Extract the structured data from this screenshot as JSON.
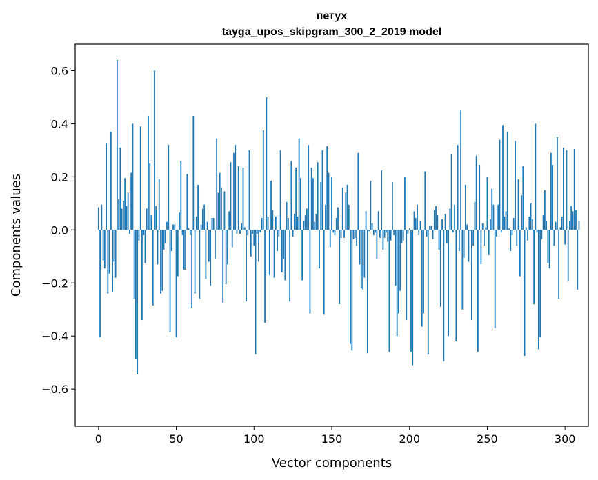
{
  "chart_data": {
    "type": "bar",
    "title_line1": "петух",
    "title_line2": "tayga_upos_skipgram_300_2_2019 model",
    "xlabel": "Vector components",
    "ylabel": "Components values",
    "xlim": [
      -15,
      315
    ],
    "ylim": [
      -0.74,
      0.7
    ],
    "x_ticks": [
      0,
      50,
      100,
      150,
      200,
      250,
      300
    ],
    "x_tick_labels": [
      "0",
      "50",
      "100",
      "150",
      "200",
      "250",
      "300"
    ],
    "y_ticks": [
      0.6,
      0.4,
      0.2,
      0.0,
      -0.2,
      -0.4,
      -0.6
    ],
    "y_tick_labels": [
      "0.6",
      "0.4",
      "0.2",
      "0.0",
      "−0.2",
      "−0.4",
      "−0.6"
    ],
    "bar_color": "#1f77b4",
    "values": [
      0.085,
      -0.405,
      0.095,
      -0.115,
      -0.145,
      0.325,
      -0.24,
      -0.165,
      0.37,
      -0.235,
      -0.12,
      -0.18,
      0.64,
      0.115,
      0.31,
      0.08,
      0.11,
      0.195,
      0.09,
      0.14,
      -0.015,
      0.215,
      0.4,
      -0.26,
      -0.485,
      -0.545,
      -0.04,
      0.39,
      -0.34,
      -0.02,
      -0.125,
      0.08,
      0.43,
      0.25,
      0.055,
      -0.285,
      0.6,
      0.09,
      -0.13,
      0.19,
      -0.24,
      -0.23,
      -0.075,
      -0.05,
      0.03,
      0.32,
      -0.385,
      -0.08,
      0.02,
      0.02,
      -0.405,
      -0.175,
      0.065,
      0.26,
      -0.02,
      -0.15,
      -0.15,
      0.21,
      0.005,
      -0.02,
      -0.295,
      0.43,
      -0.24,
      0.05,
      0.17,
      -0.26,
      0.02,
      0.08,
      0.095,
      -0.185,
      0.03,
      -0.12,
      -0.21,
      0.045,
      0.045,
      -0.11,
      0.345,
      0.14,
      0.215,
      0.16,
      -0.275,
      0.145,
      -0.205,
      -0.13,
      0.07,
      0.255,
      -0.065,
      0.29,
      0.32,
      -0.015,
      0.24,
      -0.015,
      0.025,
      0.235,
      0.01,
      -0.27,
      -0.02,
      0.3,
      -0.1,
      -0.015,
      -0.06,
      -0.47,
      -0.015,
      -0.12,
      -0.01,
      0.045,
      0.375,
      -0.35,
      0.5,
      0.05,
      -0.17,
      0.185,
      0.075,
      -0.18,
      0.05,
      -0.08,
      -0.025,
      0.3,
      -0.16,
      -0.11,
      -0.19,
      0.105,
      0.045,
      -0.27,
      0.26,
      -0.025,
      0.06,
      0.235,
      0.05,
      0.345,
      0.195,
      -0.19,
      0.035,
      0.055,
      0.08,
      0.32,
      -0.315,
      0.235,
      0.195,
      0.03,
      0.06,
      0.255,
      -0.145,
      0.18,
      0.3,
      -0.32,
      0.095,
      0.315,
      0.215,
      -0.065,
      0.2,
      -0.01,
      -0.02,
      0.045,
      0.085,
      -0.28,
      -0.03,
      0.16,
      -0.03,
      0.14,
      0.17,
      0.095,
      -0.43,
      -0.455,
      -0.035,
      -0.03,
      -0.06,
      0.29,
      -0.13,
      -0.22,
      -0.225,
      -0.18,
      0.07,
      -0.465,
      -0.005,
      0.185,
      0.025,
      -0.02,
      -0.01,
      -0.11,
      0.07,
      -0.03,
      0.225,
      -0.075,
      -0.03,
      -0.01,
      -0.045,
      -0.46,
      -0.04,
      0.18,
      -0.02,
      -0.21,
      -0.4,
      -0.315,
      -0.23,
      -0.05,
      -0.04,
      0.2,
      -0.34,
      -0.015,
      0.005,
      -0.46,
      -0.51,
      0.07,
      0.045,
      0.095,
      -0.02,
      0.035,
      -0.365,
      -0.315,
      0.22,
      -0.025,
      -0.47,
      0.015,
      0.015,
      -0.035,
      0.075,
      0.09,
      0.055,
      -0.075,
      -0.29,
      0.04,
      -0.495,
      0.06,
      -0.05,
      -0.4,
      0.08,
      0.285,
      -0.01,
      0.095,
      -0.42,
      0.32,
      -0.08,
      0.45,
      -0.3,
      -0.105,
      0.17,
      0.02,
      -0.12,
      -0.005,
      -0.34,
      -0.06,
      0.105,
      0.28,
      -0.46,
      0.245,
      -0.13,
      0.025,
      -0.06,
      0.01,
      0.2,
      -0.095,
      0.04,
      0.155,
      0.095,
      -0.37,
      -0.025,
      0.095,
      0.34,
      -0.01,
      0.395,
      0.05,
      0.07,
      0.37,
      0.005,
      -0.08,
      -0.02,
      0.045,
      0.335,
      -0.06,
      0.19,
      -0.175,
      0.13,
      0.24,
      -0.475,
      0.01,
      -0.04,
      0.05,
      0.1,
      0.04,
      -0.28,
      0.4,
      -0.01,
      -0.45,
      -0.405,
      -0.035,
      0.055,
      0.15,
      0.035,
      -0.125,
      -0.145,
      0.29,
      0.245,
      -0.06,
      0.03,
      0.35,
      -0.26,
      0.01,
      0.05,
      0.31,
      -0.055,
      0.3,
      -0.195,
      0.035,
      0.09,
      0.07,
      0.305,
      0.075,
      -0.225,
      0.035
    ]
  }
}
